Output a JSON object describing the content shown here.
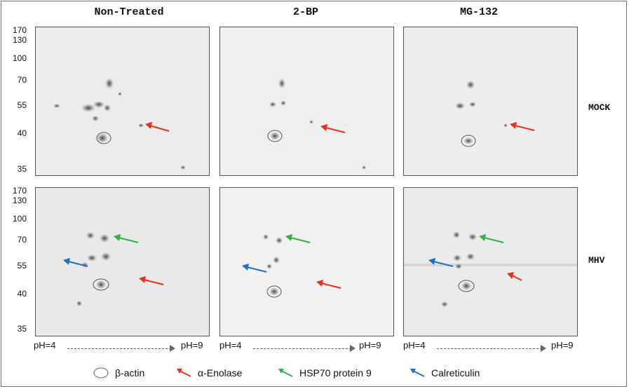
{
  "columns": [
    "Non-Treated",
    "2-BP",
    "MG-132"
  ],
  "rows": [
    "MOCK",
    "MHV"
  ],
  "mw_markers": [
    "170",
    "130",
    "100",
    "70",
    "55",
    "40",
    "35"
  ],
  "ph_axis": {
    "start": "pH=4",
    "end": "pH=9"
  },
  "legend": [
    {
      "label": "β-actin",
      "icon": "circle-icon",
      "color": "#666666"
    },
    {
      "label": "α-Enolase",
      "icon": "red-arrow-icon",
      "color": "#e8321e"
    },
    {
      "label": "HSP70 protein 9",
      "icon": "green-arrow-icon",
      "color": "#2db34a"
    },
    {
      "label": "Calreticulin",
      "icon": "blue-arrow-icon",
      "color": "#1f6fc5"
    }
  ]
}
